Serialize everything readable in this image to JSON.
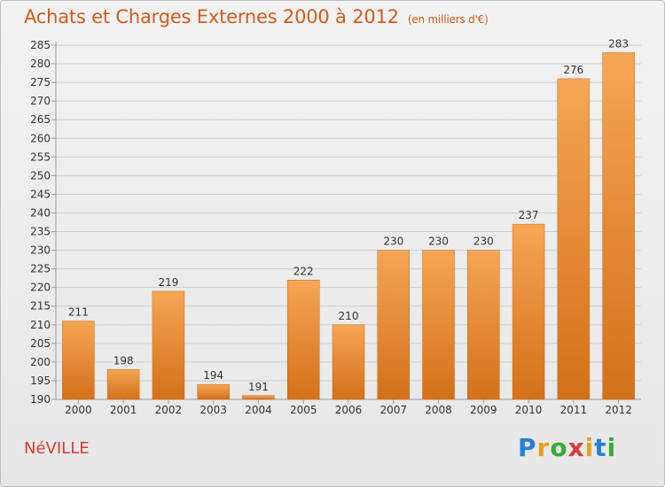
{
  "title": "Achats et Charges Externes 2000 à 2012",
  "unit": "(en milliers d'€)",
  "city": "NéVILLE",
  "logo": {
    "letters": [
      "P",
      "r",
      "o",
      "x",
      "i",
      "t",
      "i"
    ],
    "colors": [
      "#2a7fd4",
      "#e8a020",
      "#3aaa35",
      "#d43c3c",
      "#e8a020",
      "#2a7fd4",
      "#3aaa35"
    ]
  },
  "colors": {
    "bar_top": "#f5a655",
    "bar_bottom": "#d4701a",
    "grid": "#cfcfcf",
    "text": "#333333",
    "title": "#d45a1e"
  },
  "chart_data": {
    "type": "bar",
    "categories": [
      "2000",
      "2001",
      "2002",
      "2003",
      "2004",
      "2005",
      "2006",
      "2007",
      "2008",
      "2009",
      "2010",
      "2011",
      "2012"
    ],
    "values": [
      211,
      198,
      219,
      194,
      191,
      222,
      210,
      230,
      230,
      230,
      237,
      276,
      283
    ],
    "data_labels": [
      "211",
      "198",
      "219",
      "194",
      "191",
      "222",
      "210",
      "230",
      "230",
      "230",
      "237",
      "276",
      "283"
    ],
    "ylim": [
      190,
      285
    ],
    "yticks": [
      190,
      195,
      200,
      205,
      210,
      215,
      220,
      225,
      230,
      235,
      240,
      245,
      250,
      255,
      260,
      265,
      270,
      275,
      280,
      285
    ],
    "grid": true,
    "xlabel": "",
    "ylabel": ""
  }
}
